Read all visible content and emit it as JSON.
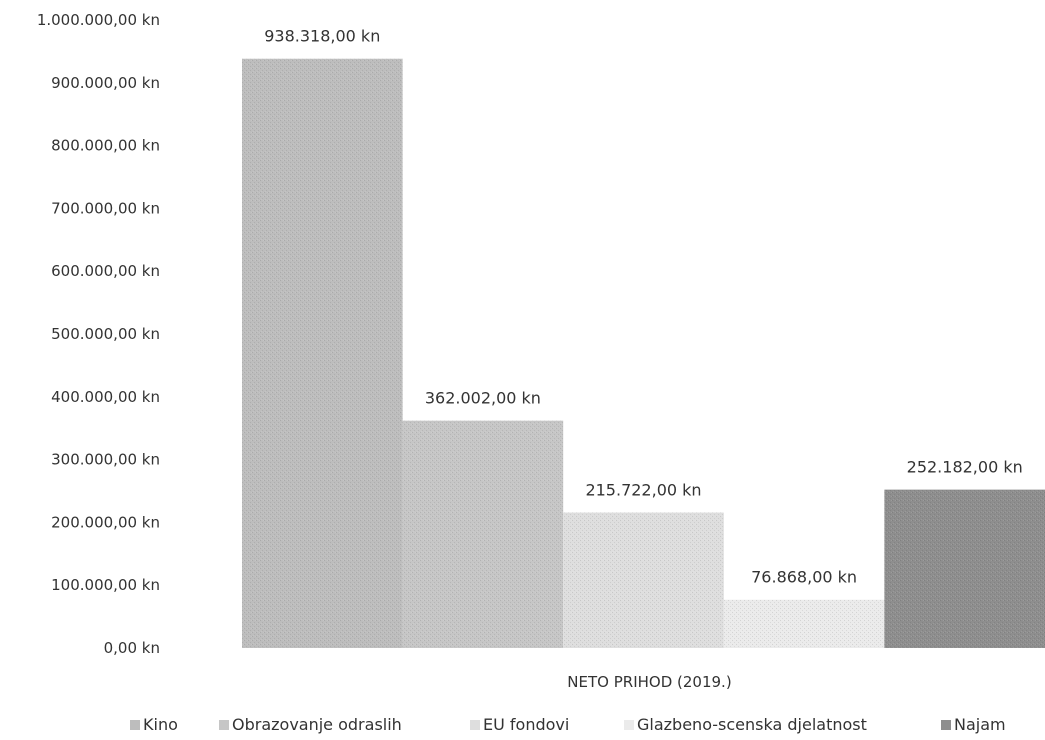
{
  "chart_data": {
    "type": "bar",
    "title": "",
    "xlabel": "",
    "ylabel": "",
    "categories": [
      "NETO PRIHOD (2019.)"
    ],
    "series": [
      {
        "name": "Kino",
        "values": [
          938318
        ],
        "label": "938.318,00 kn",
        "color": "#bdbdbd"
      },
      {
        "name": "Obrazovanje odraslih",
        "values": [
          362002
        ],
        "label": "362.002,00 kn",
        "color": "#c6c6c6"
      },
      {
        "name": "EU fondovi",
        "values": [
          215722
        ],
        "label": "215.722,00 kn",
        "color": "#dedede"
      },
      {
        "name": "Glazbeno-scenska djelatnost",
        "values": [
          76868
        ],
        "label": "76.868,00 kn",
        "color": "#ebebeb"
      },
      {
        "name": "Najam",
        "values": [
          252182
        ],
        "label": "252.182,00 kn",
        "color": "#8e8e8e"
      }
    ],
    "ylim": [
      0,
      1000000
    ],
    "yticks": [
      0,
      100000,
      200000,
      300000,
      400000,
      500000,
      600000,
      700000,
      800000,
      900000,
      1000000
    ],
    "ytick_labels": [
      "0,00 kn",
      "100.000,00 kn",
      "200.000,00 kn",
      "300.000,00 kn",
      "400.000,00 kn",
      "500.000,00 kn",
      "600.000,00 kn",
      "700.000,00 kn",
      "800.000,00 kn",
      "900.000,00 kn",
      "1.000.000,00 kn"
    ],
    "grid": false,
    "legend": "bottom"
  }
}
